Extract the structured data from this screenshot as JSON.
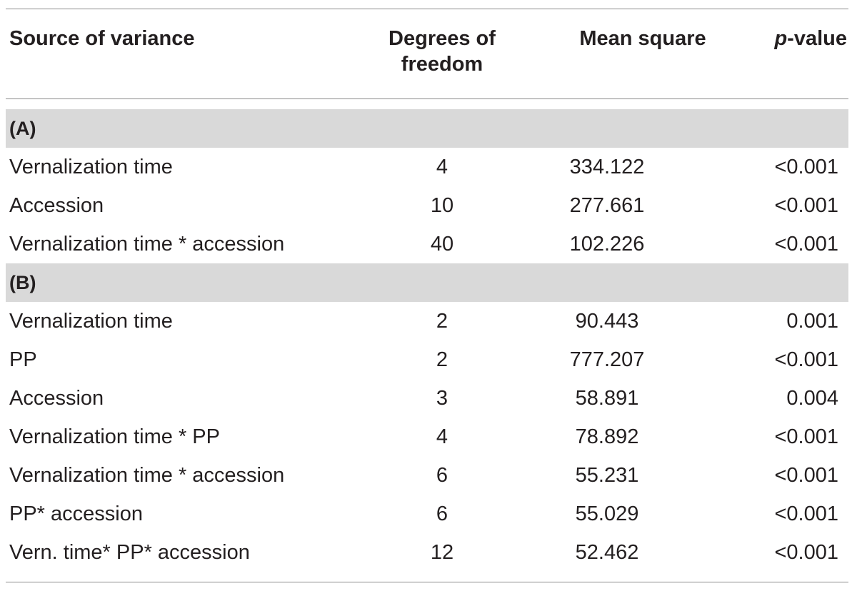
{
  "table": {
    "headers": {
      "source": "Source of variance",
      "df_line1": "Degrees of",
      "df_line2": "freedom",
      "ms": "Mean square",
      "p_italic": "p",
      "p_rest": "-value"
    },
    "sections": [
      {
        "label": "(A)",
        "rows": [
          {
            "source": "Vernalization time",
            "df": "4",
            "ms": "334.122",
            "p": "<0.001"
          },
          {
            "source": "Accession",
            "df": "10",
            "ms": "277.661",
            "p": "<0.001"
          },
          {
            "source": "Vernalization time * accession",
            "df": "40",
            "ms": "102.226",
            "p": "<0.001"
          }
        ]
      },
      {
        "label": "(B)",
        "rows": [
          {
            "source": "Vernalization time",
            "df": "2",
            "ms": "90.443",
            "p": "0.001"
          },
          {
            "source": "PP",
            "df": "2",
            "ms": "777.207",
            "p": "<0.001"
          },
          {
            "source": "Accession",
            "df": "3",
            "ms": "58.891",
            "p": "0.004"
          },
          {
            "source": "Vernalization time * PP",
            "df": "4",
            "ms": "78.892",
            "p": "<0.001"
          },
          {
            "source": "Vernalization time * accession",
            "df": "6",
            "ms": "55.231",
            "p": "<0.001"
          },
          {
            "source": "PP* accession",
            "df": "6",
            "ms": "55.029",
            "p": "<0.001"
          },
          {
            "source": "Vern. time* PP* accession",
            "df": "12",
            "ms": "52.462",
            "p": "<0.001"
          }
        ]
      }
    ]
  }
}
